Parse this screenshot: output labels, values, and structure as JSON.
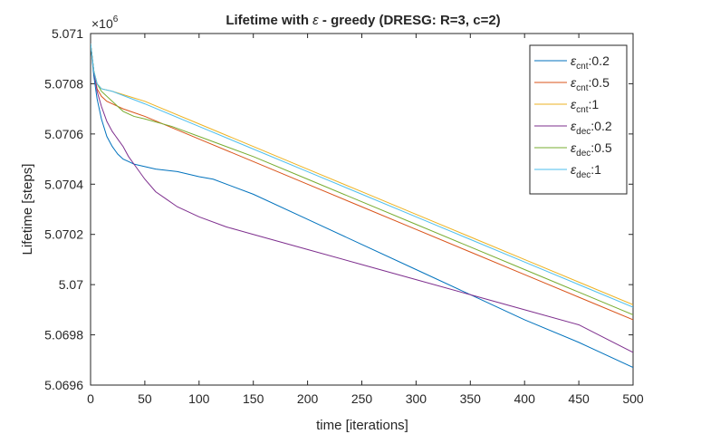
{
  "chart_data": {
    "type": "line",
    "title_parts": [
      "Lifetime with ",
      "ε",
      " - greedy (DRESG: R=3, c=2)"
    ],
    "xlabel": "time [iterations]",
    "ylabel": "Lifetime [steps]",
    "y_exponent_label": "×10",
    "y_exponent_power": "6",
    "xlim": [
      0,
      500
    ],
    "ylim": [
      5.0696,
      5.071
    ],
    "xticks": [
      0,
      50,
      100,
      150,
      200,
      250,
      300,
      350,
      400,
      450,
      500
    ],
    "xtick_labels": [
      "0",
      "50",
      "100",
      "150",
      "200",
      "250",
      "300",
      "350",
      "400",
      "450",
      "500"
    ],
    "yticks": [
      5.0696,
      5.0698,
      5.07,
      5.0702,
      5.0704,
      5.0706,
      5.0708,
      5.071
    ],
    "ytick_labels": [
      "5.0696",
      "5.0698",
      "5.07",
      "5.0702",
      "5.0704",
      "5.0706",
      "5.0708",
      "5.071"
    ],
    "grid": false,
    "legend_position": "top-right",
    "series": [
      {
        "name": "ε_cnt:0.2",
        "legend": {
          "eps": "ε",
          "sub": "cnt",
          "value": ":0.2"
        },
        "color": "#0072BD",
        "x": [
          0,
          3,
          6,
          10,
          15,
          20,
          25,
          30,
          35,
          40,
          50,
          60,
          80,
          100,
          113,
          150,
          200,
          250,
          300,
          350,
          400,
          450,
          500
        ],
        "y": [
          5.07096,
          5.07083,
          5.07074,
          5.07066,
          5.07059,
          5.07055,
          5.07052,
          5.0705,
          5.07049,
          5.07048,
          5.07047,
          5.07046,
          5.07045,
          5.07043,
          5.07042,
          5.07036,
          5.07026,
          5.07016,
          5.07006,
          5.06996,
          5.06986,
          5.06977,
          5.06967
        ]
      },
      {
        "name": "ε_cnt:0.5",
        "legend": {
          "eps": "ε",
          "sub": "cnt",
          "value": ":0.5"
        },
        "color": "#D95319",
        "x": [
          0,
          3,
          6,
          10,
          15,
          20,
          30,
          50,
          100,
          150,
          200,
          250,
          300,
          350,
          400,
          450,
          500
        ],
        "y": [
          5.07096,
          5.07085,
          5.07078,
          5.07075,
          5.07073,
          5.07072,
          5.0707,
          5.07067,
          5.07058,
          5.07049,
          5.0704,
          5.07031,
          5.07022,
          5.07013,
          5.07004,
          5.06995,
          5.06986
        ]
      },
      {
        "name": "ε_cnt:1",
        "legend": {
          "eps": "ε",
          "sub": "cnt",
          "value": ":1"
        },
        "color": "#EDB120",
        "x": [
          0,
          3,
          6,
          10,
          20,
          50,
          100,
          150,
          200,
          250,
          300,
          350,
          400,
          450,
          500
        ],
        "y": [
          5.07096,
          5.07085,
          5.0708,
          5.07078,
          5.07077,
          5.07073,
          5.07064,
          5.07055,
          5.07046,
          5.07037,
          5.07028,
          5.07019,
          5.0701,
          5.07001,
          5.06992
        ]
      },
      {
        "name": "ε_dec:0.2",
        "legend": {
          "eps": "ε",
          "sub": "dec",
          "value": ":0.2"
        },
        "color": "#7E2F8E",
        "x": [
          0,
          3,
          6,
          10,
          15,
          20,
          25,
          30,
          35,
          40,
          50,
          60,
          70,
          80,
          100,
          125,
          150,
          200,
          250,
          300,
          350,
          400,
          450,
          500
        ],
        "y": [
          5.07096,
          5.07085,
          5.07077,
          5.07071,
          5.07065,
          5.07061,
          5.07058,
          5.07055,
          5.07051,
          5.07048,
          5.07042,
          5.07037,
          5.07034,
          5.07031,
          5.07027,
          5.07023,
          5.0702,
          5.07014,
          5.07008,
          5.07002,
          5.06996,
          5.0699,
          5.06984,
          5.06973
        ]
      },
      {
        "name": "ε_dec:0.5",
        "legend": {
          "eps": "ε",
          "sub": "dec",
          "value": ":0.5"
        },
        "color": "#77AC30",
        "x": [
          0,
          3,
          6,
          10,
          20,
          30,
          40,
          50,
          75,
          100,
          150,
          200,
          250,
          300,
          350,
          400,
          450,
          500
        ],
        "y": [
          5.07096,
          5.07085,
          5.0708,
          5.07077,
          5.07073,
          5.07069,
          5.07067,
          5.07066,
          5.07063,
          5.07059,
          5.07051,
          5.07042,
          5.07033,
          5.07024,
          5.07015,
          5.07006,
          5.06997,
          5.06988
        ]
      },
      {
        "name": "ε_dec:1",
        "legend": {
          "eps": "ε",
          "sub": "dec",
          "value": ":1"
        },
        "color": "#4DBEEE",
        "x": [
          0,
          3,
          6,
          10,
          20,
          50,
          100,
          150,
          200,
          250,
          300,
          350,
          400,
          450,
          500
        ],
        "y": [
          5.07096,
          5.07085,
          5.0708,
          5.07078,
          5.07077,
          5.07072,
          5.07063,
          5.07054,
          5.07045,
          5.07036,
          5.07027,
          5.07018,
          5.07009,
          5.07,
          5.06991
        ]
      }
    ]
  }
}
